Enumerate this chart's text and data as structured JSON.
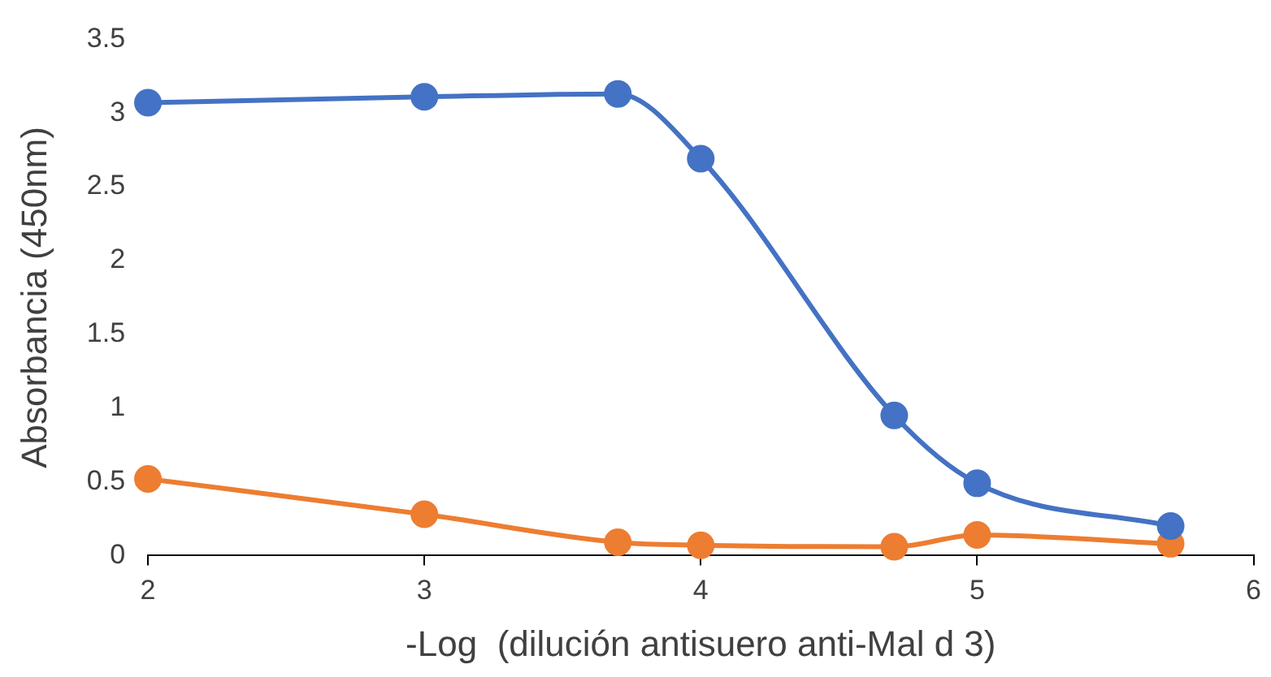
{
  "chart_data": {
    "type": "line",
    "xlabel": "-Log  (dilución antisuero anti-Mal d 3)",
    "ylabel": "Absorbancia (450nm)",
    "x": [
      2,
      3,
      3.7,
      4,
      4.7,
      5,
      5.7
    ],
    "series": [
      {
        "color": "#4472c4",
        "values": [
          3.07,
          3.11,
          3.13,
          2.69,
          0.95,
          0.49,
          0.2
        ]
      },
      {
        "color": "#ed7d31",
        "values": [
          0.52,
          0.28,
          0.09,
          0.07,
          0.06,
          0.14,
          0.08
        ]
      }
    ],
    "xlim": [
      2,
      6
    ],
    "xticks": [
      2,
      3,
      4,
      5,
      6
    ],
    "ylim": [
      0,
      3.5
    ],
    "yticks": [
      0,
      0.5,
      1,
      1.5,
      2,
      2.5,
      3,
      3.5
    ],
    "grid": false,
    "legend": false,
    "marker": "circle",
    "line_style": "solid"
  }
}
